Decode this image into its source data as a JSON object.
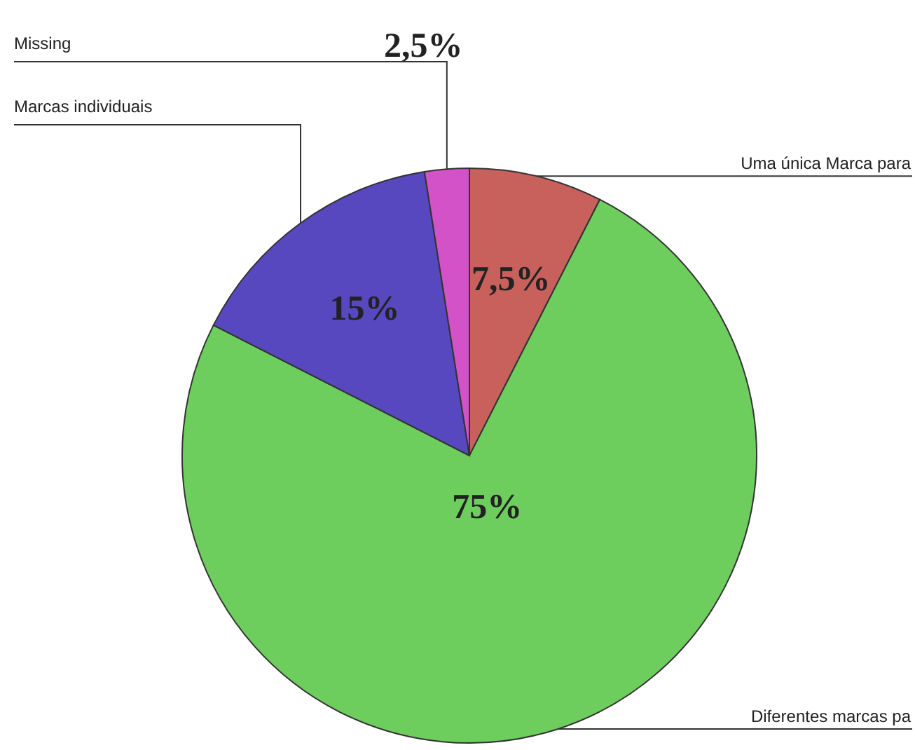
{
  "chart_data": {
    "type": "pie",
    "categories": [
      "Uma única Marca para",
      "Diferentes marcas pa",
      "Marcas individuais",
      "Missing"
    ],
    "values": [
      7.5,
      75,
      15,
      2.5
    ],
    "colors": [
      "#c8605c",
      "#6dce5e",
      "#5848c0",
      "#d452c8"
    ],
    "value_labels": [
      "7,5%",
      "75%",
      "15%",
      "2,5%"
    ]
  }
}
